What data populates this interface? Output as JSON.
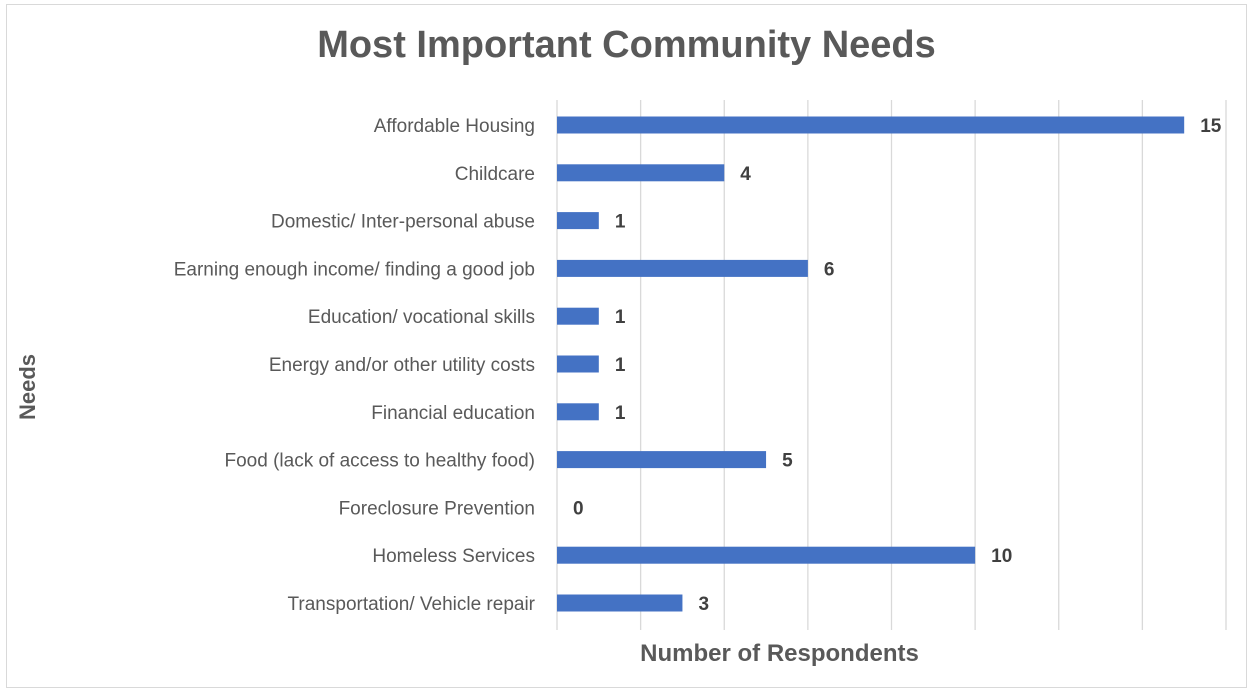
{
  "chart_data": {
    "type": "bar",
    "orientation": "horizontal",
    "title": "Most Important Community Needs",
    "xlabel": "Number of Respondents",
    "ylabel": "Needs",
    "categories": [
      "Affordable Housing",
      "Childcare",
      "Domestic/ Inter-personal abuse",
      "Earning enough income/ finding a good job",
      "Education/ vocational skills",
      "Energy and/or other utility costs",
      "Financial education",
      "Food (lack of access to healthy food)",
      "Foreclosure Prevention",
      "Homeless Services",
      "Transportation/ Vehicle repair"
    ],
    "values": [
      15,
      4,
      1,
      6,
      1,
      1,
      1,
      5,
      0,
      10,
      3
    ],
    "xlim": [
      0,
      16
    ],
    "grid": "vertical",
    "bar_color": "#4472c4",
    "data_labels": true
  }
}
